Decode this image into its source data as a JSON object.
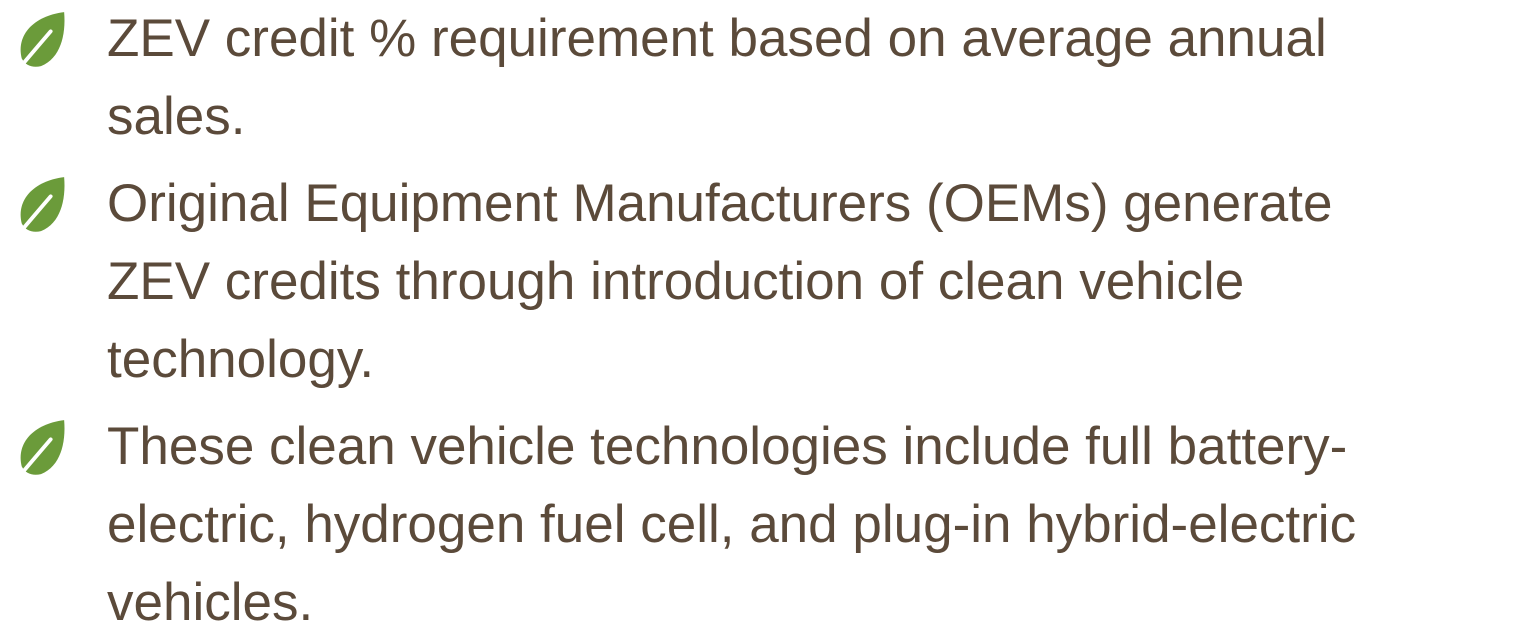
{
  "bullets": [
    {
      "lines": [
        "ZEV credit % requirement based on average annual",
        "sales."
      ]
    },
    {
      "lines": [
        "Original Equipment Manufacturers (OEMs) generate",
        "ZEV credits through introduction of clean vehicle",
        "technology."
      ]
    },
    {
      "lines": [
        "These clean vehicle technologies include full battery-",
        "electric, hydrogen fuel cell, and plug-in hybrid-electric",
        "vehicles."
      ]
    }
  ]
}
